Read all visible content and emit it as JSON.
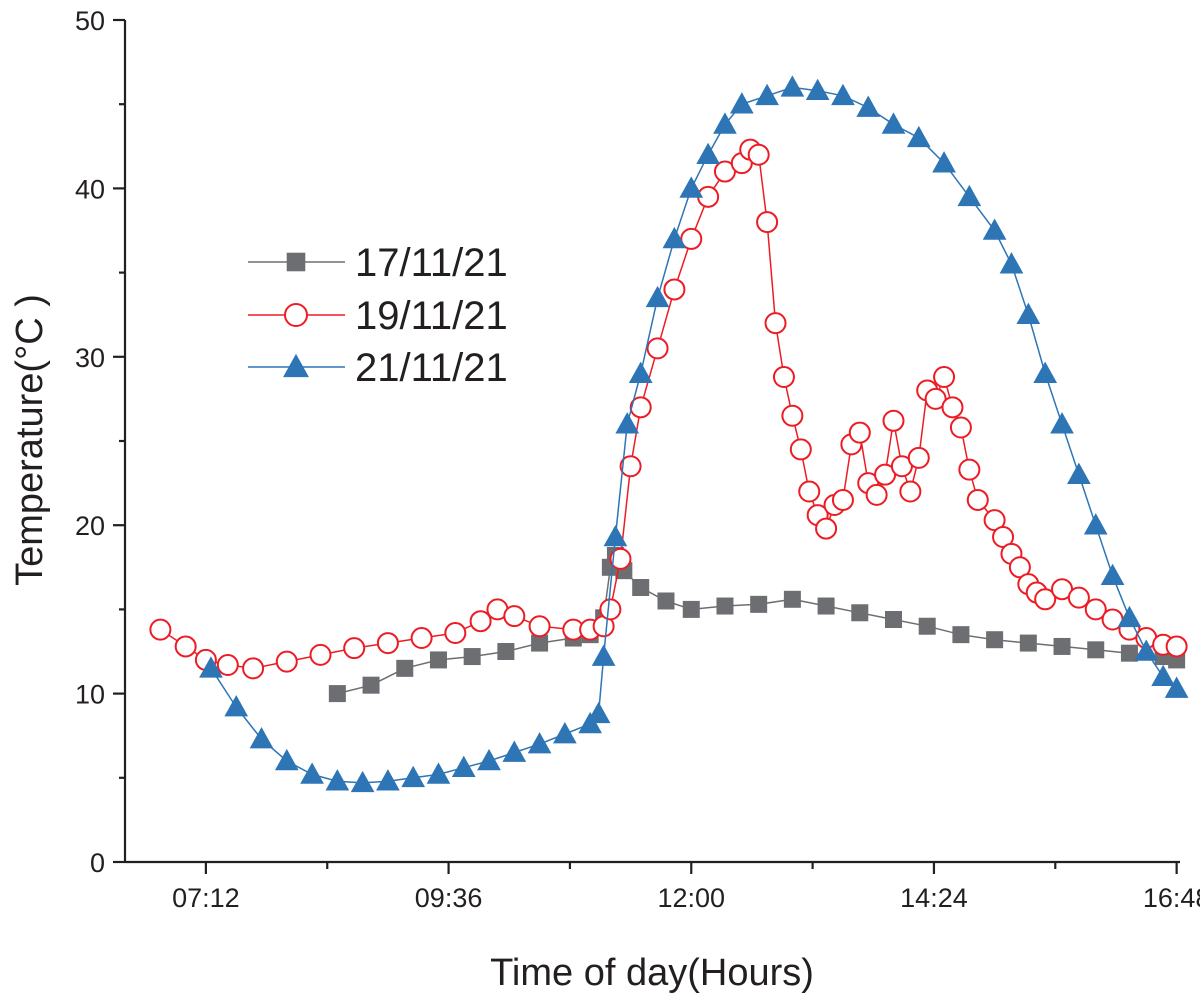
{
  "chart_data": {
    "type": "line",
    "xlabel": "Time of day(Hours)",
    "ylabel": "Temperature(°C )",
    "xlim": [
      "06:30",
      "16:48"
    ],
    "ylim": [
      0,
      50
    ],
    "x_ticks": [
      "07:12",
      "09:36",
      "12:00",
      "14:24",
      "16:48"
    ],
    "x_minor_ticks": [
      "08:24",
      "10:48",
      "13:12",
      "15:36"
    ],
    "y_ticks": [
      0,
      10,
      20,
      30,
      40,
      50
    ],
    "grid": false,
    "legend_position": "center-left",
    "series": [
      {
        "name": "17/11/21",
        "color": "#6d6e71",
        "marker": "square",
        "marker_filled": true,
        "points": [
          [
            "08:30",
            10.0
          ],
          [
            "08:50",
            10.5
          ],
          [
            "09:10",
            11.5
          ],
          [
            "09:30",
            12.0
          ],
          [
            "09:50",
            12.2
          ],
          [
            "10:10",
            12.5
          ],
          [
            "10:30",
            13.0
          ],
          [
            "10:50",
            13.3
          ],
          [
            "11:00",
            13.5
          ],
          [
            "11:08",
            14.5
          ],
          [
            "11:12",
            17.5
          ],
          [
            "11:15",
            18.2
          ],
          [
            "11:20",
            17.3
          ],
          [
            "11:30",
            16.3
          ],
          [
            "11:45",
            15.5
          ],
          [
            "12:00",
            15.0
          ],
          [
            "12:20",
            15.2
          ],
          [
            "12:40",
            15.3
          ],
          [
            "13:00",
            15.6
          ],
          [
            "13:20",
            15.2
          ],
          [
            "13:40",
            14.8
          ],
          [
            "14:00",
            14.4
          ],
          [
            "14:20",
            14.0
          ],
          [
            "14:40",
            13.5
          ],
          [
            "15:00",
            13.2
          ],
          [
            "15:20",
            13.0
          ],
          [
            "15:40",
            12.8
          ],
          [
            "16:00",
            12.6
          ],
          [
            "16:20",
            12.4
          ],
          [
            "16:40",
            12.2
          ],
          [
            "16:48",
            12.0
          ]
        ]
      },
      {
        "name": "19/11/21",
        "color": "#ed1c24",
        "marker": "circle",
        "marker_filled": false,
        "points": [
          [
            "06:45",
            13.8
          ],
          [
            "07:00",
            12.8
          ],
          [
            "07:12",
            12.0
          ],
          [
            "07:25",
            11.7
          ],
          [
            "07:40",
            11.5
          ],
          [
            "08:00",
            11.9
          ],
          [
            "08:20",
            12.3
          ],
          [
            "08:40",
            12.7
          ],
          [
            "09:00",
            13.0
          ],
          [
            "09:20",
            13.3
          ],
          [
            "09:40",
            13.6
          ],
          [
            "09:55",
            14.3
          ],
          [
            "10:05",
            15.0
          ],
          [
            "10:15",
            14.6
          ],
          [
            "10:30",
            14.0
          ],
          [
            "10:50",
            13.8
          ],
          [
            "11:00",
            13.8
          ],
          [
            "11:08",
            14.0
          ],
          [
            "11:12",
            15.0
          ],
          [
            "11:18",
            18.0
          ],
          [
            "11:24",
            23.5
          ],
          [
            "11:30",
            27.0
          ],
          [
            "11:40",
            30.5
          ],
          [
            "11:50",
            34.0
          ],
          [
            "12:00",
            37.0
          ],
          [
            "12:10",
            39.5
          ],
          [
            "12:20",
            41.0
          ],
          [
            "12:30",
            41.5
          ],
          [
            "12:35",
            42.3
          ],
          [
            "12:40",
            42.0
          ],
          [
            "12:45",
            38.0
          ],
          [
            "12:50",
            32.0
          ],
          [
            "12:55",
            28.8
          ],
          [
            "13:00",
            26.5
          ],
          [
            "13:05",
            24.5
          ],
          [
            "13:10",
            22.0
          ],
          [
            "13:15",
            20.6
          ],
          [
            "13:20",
            19.8
          ],
          [
            "13:25",
            21.2
          ],
          [
            "13:30",
            21.5
          ],
          [
            "13:35",
            24.8
          ],
          [
            "13:40",
            25.5
          ],
          [
            "13:45",
            22.5
          ],
          [
            "13:50",
            21.8
          ],
          [
            "13:55",
            23.0
          ],
          [
            "14:00",
            26.2
          ],
          [
            "14:05",
            23.5
          ],
          [
            "14:10",
            22.0
          ],
          [
            "14:15",
            24.0
          ],
          [
            "14:20",
            28.0
          ],
          [
            "14:25",
            27.5
          ],
          [
            "14:30",
            28.8
          ],
          [
            "14:35",
            27.0
          ],
          [
            "14:40",
            25.8
          ],
          [
            "14:45",
            23.3
          ],
          [
            "14:50",
            21.5
          ],
          [
            "15:00",
            20.3
          ],
          [
            "15:05",
            19.3
          ],
          [
            "15:10",
            18.3
          ],
          [
            "15:15",
            17.5
          ],
          [
            "15:20",
            16.5
          ],
          [
            "15:25",
            16.0
          ],
          [
            "15:30",
            15.6
          ],
          [
            "15:40",
            16.2
          ],
          [
            "15:50",
            15.7
          ],
          [
            "16:00",
            15.0
          ],
          [
            "16:10",
            14.4
          ],
          [
            "16:20",
            13.8
          ],
          [
            "16:30",
            13.3
          ],
          [
            "16:40",
            12.9
          ],
          [
            "16:48",
            12.8
          ]
        ]
      },
      {
        "name": "21/11/21",
        "color": "#2e75b6",
        "marker": "triangle",
        "marker_filled": true,
        "points": [
          [
            "07:15",
            11.5
          ],
          [
            "07:30",
            9.2
          ],
          [
            "07:45",
            7.3
          ],
          [
            "08:00",
            6.0
          ],
          [
            "08:15",
            5.2
          ],
          [
            "08:30",
            4.8
          ],
          [
            "08:45",
            4.7
          ],
          [
            "09:00",
            4.8
          ],
          [
            "09:15",
            5.0
          ],
          [
            "09:30",
            5.2
          ],
          [
            "09:45",
            5.6
          ],
          [
            "10:00",
            6.0
          ],
          [
            "10:15",
            6.5
          ],
          [
            "10:30",
            7.0
          ],
          [
            "10:45",
            7.6
          ],
          [
            "11:00",
            8.2
          ],
          [
            "11:05",
            8.8
          ],
          [
            "11:08",
            12.2
          ],
          [
            "11:15",
            19.3
          ],
          [
            "11:22",
            26.0
          ],
          [
            "11:30",
            29.0
          ],
          [
            "11:40",
            33.5
          ],
          [
            "11:50",
            37.0
          ],
          [
            "12:00",
            40.0
          ],
          [
            "12:10",
            42.0
          ],
          [
            "12:20",
            43.8
          ],
          [
            "12:30",
            45.0
          ],
          [
            "12:45",
            45.5
          ],
          [
            "13:00",
            46.0
          ],
          [
            "13:15",
            45.8
          ],
          [
            "13:30",
            45.5
          ],
          [
            "13:45",
            44.8
          ],
          [
            "14:00",
            43.8
          ],
          [
            "14:15",
            43.0
          ],
          [
            "14:30",
            41.5
          ],
          [
            "14:45",
            39.5
          ],
          [
            "15:00",
            37.5
          ],
          [
            "15:10",
            35.5
          ],
          [
            "15:20",
            32.5
          ],
          [
            "15:30",
            29.0
          ],
          [
            "15:40",
            26.0
          ],
          [
            "15:50",
            23.0
          ],
          [
            "16:00",
            20.0
          ],
          [
            "16:10",
            17.0
          ],
          [
            "16:20",
            14.5
          ],
          [
            "16:30",
            12.5
          ],
          [
            "16:40",
            11.0
          ],
          [
            "16:48",
            10.3
          ]
        ]
      }
    ]
  }
}
